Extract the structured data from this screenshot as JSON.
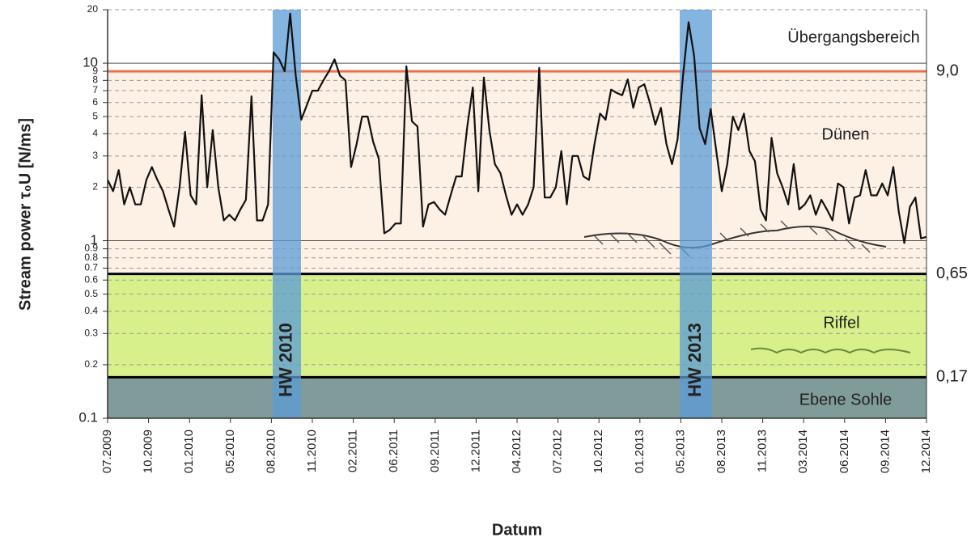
{
  "chart_data": {
    "type": "line",
    "y_label": "Stream power τ₀U [N/ms]",
    "x_label": "Datum",
    "log_y": true,
    "ylim": [
      0.1,
      20
    ],
    "yticks": [
      0.1,
      0.2,
      0.3,
      0.4,
      0.5,
      0.6,
      0.7,
      0.8,
      0.9,
      1,
      2,
      3,
      4,
      5,
      6,
      7,
      8,
      9,
      10,
      20
    ],
    "xticks": [
      "07.2009",
      "10.2009",
      "01.2010",
      "05.2010",
      "08.2010",
      "11.2010",
      "02.2011",
      "06.2011",
      "09.2011",
      "12.2011",
      "04.2012",
      "07.2012",
      "10.2012",
      "01.2013",
      "05.2013",
      "08.2013",
      "11.2013",
      "03.2014",
      "06.2014",
      "09.2014",
      "12.2014"
    ],
    "grid": true,
    "thresholds": [
      {
        "value": 0.17,
        "label": "0,17",
        "color": "#000000"
      },
      {
        "value": 0.65,
        "label": "0,65",
        "color": "#000000"
      },
      {
        "value": 9,
        "label": "9,0",
        "color": "#e8744f"
      }
    ],
    "regions": [
      {
        "label": "Ebene Sohle",
        "color": "#809c9a"
      },
      {
        "label": "Riffel",
        "color": "#d8f08c"
      },
      {
        "label": "Dünen",
        "color": "#fdf1e6"
      },
      {
        "label": "Übergangsbereich",
        "color": "#ffffff"
      }
    ],
    "highlights": [
      {
        "label": "HW 2010",
        "color": "#5b9bd5"
      },
      {
        "label": "HW 2013",
        "color": "#5b9bd5"
      }
    ],
    "series": [
      {
        "color": "#111111",
        "values": [
          2.2,
          1.9,
          2.5,
          1.6,
          2.0,
          1.6,
          1.6,
          2.2,
          2.6,
          2.2,
          1.9,
          1.5,
          1.2,
          2.0,
          4.1,
          1.8,
          1.6,
          6.6,
          2.0,
          4.2,
          2.0,
          1.3,
          1.4,
          1.3,
          1.5,
          1.7,
          6.5,
          1.3,
          1.3,
          1.6,
          11.5,
          10.5,
          9.0,
          19,
          8.5,
          4.8,
          5.8,
          7.0,
          7.0,
          8.0,
          9.0,
          10.5,
          8.5,
          8.0,
          2.6,
          3.5,
          5.0,
          5.0,
          3.6,
          2.9,
          1.1,
          1.15,
          1.25,
          1.25,
          9.6,
          4.7,
          4.4,
          1.2,
          1.6,
          1.65,
          1.5,
          1.4,
          1.8,
          2.3,
          2.3,
          4.4,
          7.3,
          1.9,
          8.3,
          4.2,
          2.7,
          2.4,
          1.8,
          1.4,
          1.6,
          1.4,
          1.6,
          2.0,
          9.4,
          1.75,
          1.75,
          2.0,
          3.2,
          1.6,
          3.0,
          3.0,
          2.3,
          2.2,
          3.5,
          5.2,
          4.8,
          7.1,
          6.8,
          6.6,
          8.1,
          5.6,
          7.3,
          7.6,
          6.0,
          4.5,
          5.6,
          3.5,
          2.7,
          3.7,
          8.5,
          17,
          11,
          4.3,
          3.5,
          5.5,
          3.2,
          1.9,
          2.7,
          5.0,
          4.2,
          5.2,
          3.2,
          2.8,
          1.5,
          1.3,
          3.8,
          2.4,
          2.0,
          1.6,
          2.7,
          1.5,
          1.6,
          1.8,
          1.4,
          1.7,
          1.5,
          1.3,
          2.1,
          2.0,
          1.25,
          1.75,
          1.8,
          2.5,
          1.8,
          1.8,
          2.1,
          1.8,
          2.6,
          1.45,
          0.97,
          1.55,
          1.75,
          1.03,
          1.05
        ]
      }
    ]
  }
}
